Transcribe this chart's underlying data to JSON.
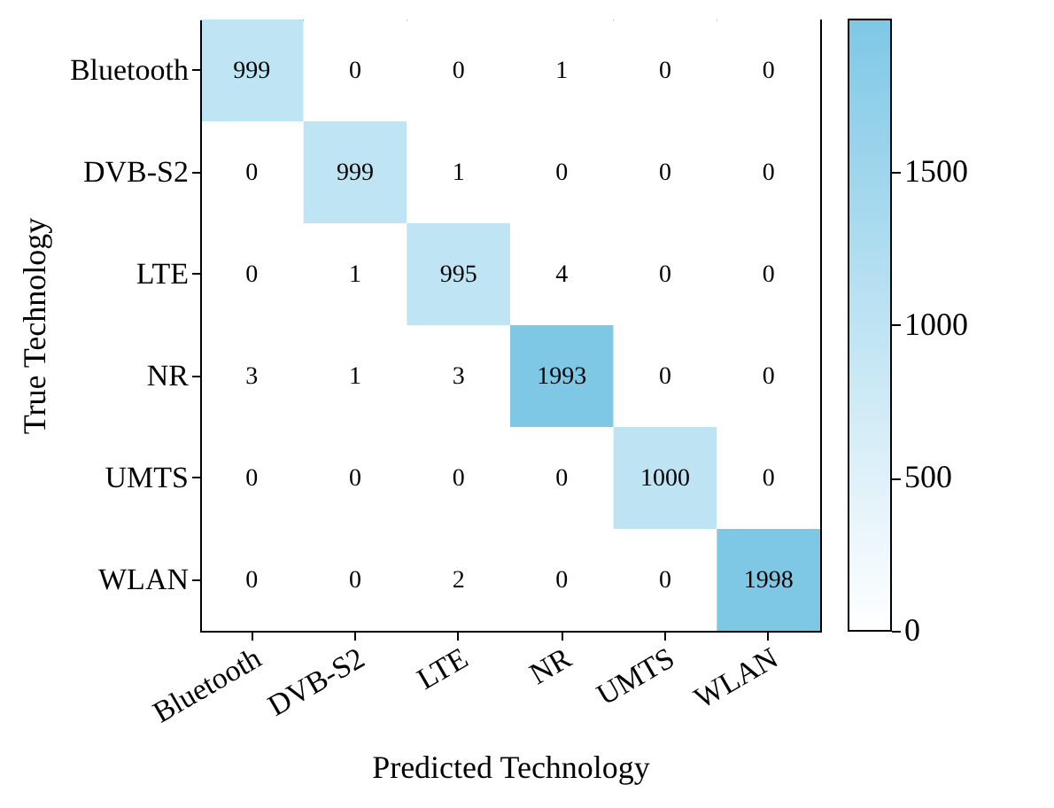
{
  "chart_data": {
    "type": "heatmap",
    "xlabel": "Predicted Technology",
    "ylabel": "True Technology",
    "categories": [
      "Bluetooth",
      "DVB-S2",
      "LTE",
      "NR",
      "UMTS",
      "WLAN"
    ],
    "y_categories": [
      "Bluetooth",
      "DVB-S2",
      "LTE",
      "NR",
      "UMTS",
      "WLAN"
    ],
    "cells": [
      [
        999,
        0,
        0,
        1,
        0,
        0
      ],
      [
        0,
        999,
        1,
        0,
        0,
        0
      ],
      [
        0,
        1,
        995,
        4,
        0,
        0
      ],
      [
        3,
        1,
        3,
        1993,
        0,
        0
      ],
      [
        0,
        0,
        0,
        0,
        1000,
        0
      ],
      [
        0,
        0,
        2,
        0,
        0,
        1998
      ]
    ],
    "clim": [
      0,
      1998
    ],
    "cticks": [
      0,
      500,
      1000,
      1500
    ],
    "data_labels": true
  }
}
